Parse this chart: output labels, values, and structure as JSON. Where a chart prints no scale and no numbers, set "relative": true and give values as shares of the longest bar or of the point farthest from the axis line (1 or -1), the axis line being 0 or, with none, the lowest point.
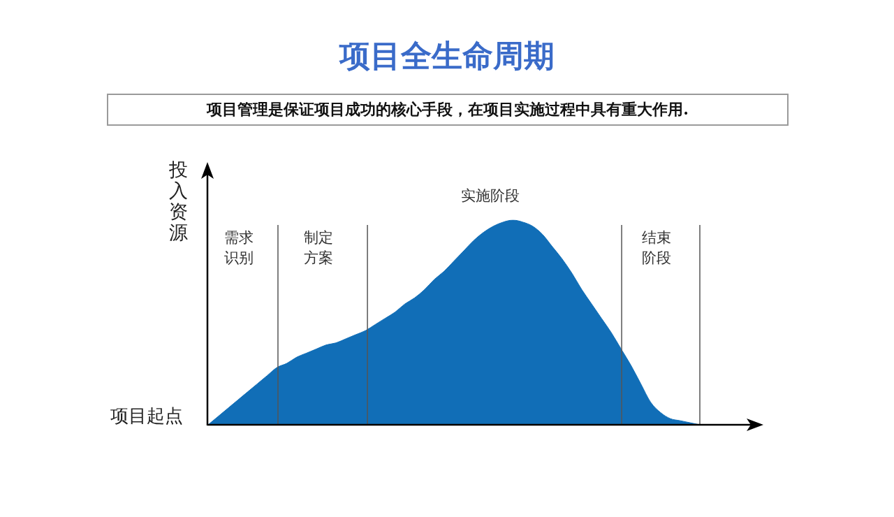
{
  "chart_data": {
    "type": "area",
    "title": "项目全生命周期",
    "subtitle": "项目管理是保证项目成功的核心手段，在项目实施过程中具有重大作用.",
    "ylabel": "投入资源",
    "annotations": [
      "需求识别",
      "制定方案",
      "实施阶段",
      "结束阶段",
      "项目起点"
    ],
    "relative": true,
    "grid": "x",
    "categories": [
      null,
      null,
      null,
      null,
      null,
      null,
      null,
      null,
      null,
      null,
      null,
      null,
      null,
      null,
      null,
      null,
      null,
      null,
      null,
      null,
      null,
      null,
      null,
      null,
      null,
      null,
      null,
      null,
      null,
      null,
      null,
      null,
      null,
      null,
      null,
      null,
      null,
      null,
      null,
      null,
      null,
      null,
      null,
      null,
      null,
      null,
      null,
      null,
      null,
      null,
      null
    ],
    "color": "#116eb7",
    "values": [
      0,
      0.04,
      0.08,
      0.12,
      0.16,
      0.2,
      0.24,
      0.28,
      0.3,
      0.33,
      0.35,
      0.37,
      0.39,
      0.4,
      0.42,
      0.44,
      0.46,
      0.49,
      0.52,
      0.55,
      0.59,
      0.62,
      0.66,
      0.71,
      0.75,
      0.8,
      0.85,
      0.9,
      0.94,
      0.97,
      0.99,
      1,
      0.99,
      0.97,
      0.93,
      0.87,
      0.81,
      0.74,
      0.66,
      0.59,
      0.52,
      0.45,
      0.37,
      0.29,
      0.2,
      0.11,
      0.06,
      0.03,
      0.02,
      0.01,
      0
    ]
  }
}
